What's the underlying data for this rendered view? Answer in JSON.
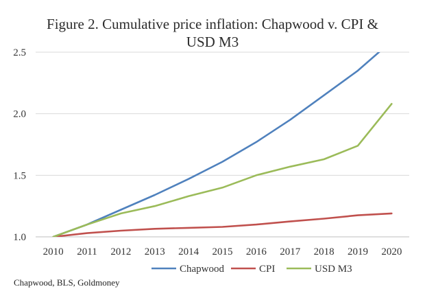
{
  "chart_data": {
    "type": "line",
    "title_line1": "Figure 2. Cumulative price inflation: Chapwood v. CPI &",
    "title_line2": "USD M3",
    "source": "Chapwood, BLS, Goldmoney",
    "x": [
      2010,
      2011,
      2012,
      2013,
      2014,
      2015,
      2016,
      2017,
      2018,
      2019,
      2020
    ],
    "ylim": [
      1.0,
      2.5
    ],
    "yticks": [
      "1.0",
      "1.5",
      "2.0",
      "2.5"
    ],
    "xticks": [
      "2010",
      "2011",
      "2012",
      "2013",
      "2014",
      "2015",
      "2016",
      "2017",
      "2018",
      "2019",
      "2020"
    ],
    "grid": "horizontal",
    "legend_position": "bottom",
    "series": [
      {
        "name": "Chapwood",
        "color": "#4f81bd",
        "values": [
          1.0,
          1.1,
          1.22,
          1.34,
          1.47,
          1.61,
          1.77,
          1.95,
          2.15,
          2.35,
          2.59
        ]
      },
      {
        "name": "CPI",
        "color": "#c0504d",
        "values": [
          1.0,
          1.03,
          1.05,
          1.065,
          1.073,
          1.081,
          1.1,
          1.125,
          1.148,
          1.175,
          1.19
        ]
      },
      {
        "name": "USD M3",
        "color": "#9bbb59",
        "values": [
          1.0,
          1.1,
          1.19,
          1.25,
          1.33,
          1.4,
          1.5,
          1.57,
          1.63,
          1.74,
          2.08
        ]
      }
    ]
  }
}
